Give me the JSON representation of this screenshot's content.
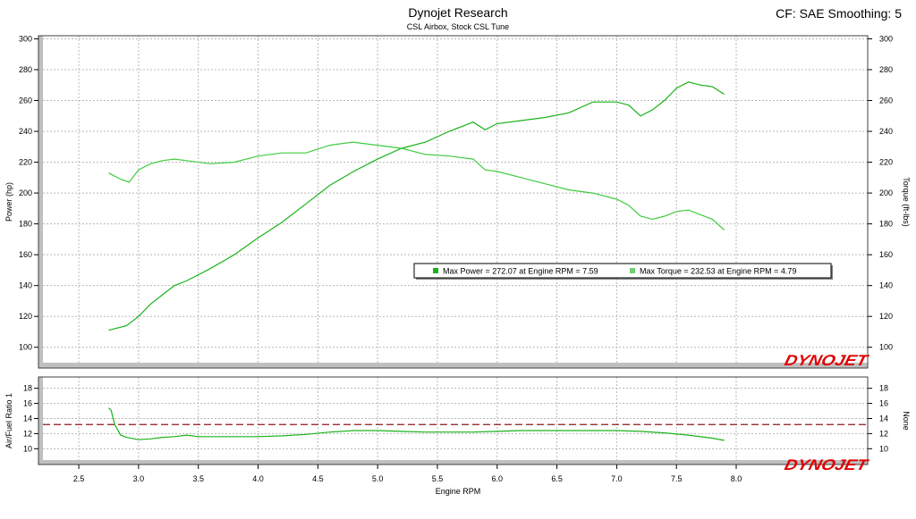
{
  "header": {
    "title": "Dynojet Research",
    "subtitle": "CSL Airbox, Stock CSL Tune",
    "settings": "CF: SAE Smoothing: 5"
  },
  "brand": {
    "logo": "DYNOJET"
  },
  "colors": {
    "power": "#1ab31a",
    "torque": "#3fcc3f",
    "afr": "#1ab31a",
    "reference_line": "#8b1a1a",
    "grid": "#b8b8b8",
    "frame": "#404040",
    "logo_red": "#e00000",
    "logo_black": "#000000"
  },
  "chart_data": [
    {
      "type": "line",
      "name": "dyno-main",
      "title": "Dynojet Research",
      "subtitle": "CSL Airbox, Stock CSL Tune",
      "xlabel": "Engine RPM",
      "ylabel": "Power (hp)",
      "y2label": "Torque (ft-lbs)",
      "xlim": [
        2.2,
        9.1
      ],
      "ylim": [
        90,
        302
      ],
      "y2lim": [
        90,
        302
      ],
      "x_ticks": [
        "2.5",
        "3.0",
        "3.5",
        "4.0",
        "4.5",
        "5.0",
        "5.5",
        "6.0",
        "6.5",
        "7.0",
        "7.5",
        "8.0"
      ],
      "y_ticks": [
        "100",
        "120",
        "140",
        "160",
        "180",
        "200",
        "220",
        "240",
        "260",
        "280",
        "300"
      ],
      "y2_ticks": [
        "100",
        "120",
        "140",
        "160",
        "180",
        "200",
        "220",
        "240",
        "260",
        "280",
        "300"
      ],
      "grid": true,
      "legend_text": [
        "Max Power = 272.07 at Engine RPM = 7.59",
        "Max Torque = 232.53 at Engine RPM = 4.79"
      ],
      "legend_placement": "center-right",
      "series": [
        {
          "axis": "left",
          "x": [
            2.75,
            2.9,
            3.0,
            3.1,
            3.2,
            3.3,
            3.4,
            3.5,
            3.6,
            3.8,
            4.0,
            4.2,
            4.4,
            4.6,
            4.8,
            5.0,
            5.2,
            5.4,
            5.6,
            5.8,
            5.9,
            6.0,
            6.2,
            6.4,
            6.6,
            6.8,
            7.0,
            7.1,
            7.2,
            7.3,
            7.4,
            7.5,
            7.6,
            7.7,
            7.8,
            7.9
          ],
          "y": [
            111,
            114,
            120,
            128,
            134,
            140,
            143,
            147,
            151,
            160,
            171,
            181,
            193,
            205,
            214,
            222,
            229,
            233,
            240,
            246,
            241,
            245,
            247,
            249,
            252,
            259,
            259,
            257,
            250,
            254,
            260,
            268,
            272,
            270,
            269,
            264
          ]
        },
        {
          "axis": "right",
          "x": [
            2.75,
            2.85,
            2.92,
            3.0,
            3.1,
            3.2,
            3.3,
            3.4,
            3.6,
            3.8,
            4.0,
            4.2,
            4.4,
            4.6,
            4.79,
            5.0,
            5.2,
            5.4,
            5.6,
            5.8,
            5.9,
            6.0,
            6.2,
            6.4,
            6.6,
            6.8,
            7.0,
            7.1,
            7.2,
            7.3,
            7.4,
            7.5,
            7.6,
            7.7,
            7.8,
            7.9
          ],
          "y": [
            213,
            209,
            207,
            215,
            219,
            221,
            222,
            221,
            219,
            220,
            224,
            226,
            226,
            231,
            233,
            231,
            229,
            225,
            224,
            222,
            215,
            214,
            210,
            206,
            202,
            200,
            196,
            192,
            185,
            183,
            185,
            188,
            189,
            186,
            183,
            176
          ]
        }
      ]
    },
    {
      "type": "line",
      "name": "afr",
      "xlabel": "Engine RPM",
      "ylabel": "Air/Fuel Ratio 1",
      "y2label": "None",
      "xlim": [
        2.2,
        9.1
      ],
      "ylim": [
        8.5,
        19.5
      ],
      "y_ticks": [
        "10",
        "12",
        "14",
        "16",
        "18"
      ],
      "y2_ticks": [
        "10",
        "12",
        "14",
        "16",
        "18"
      ],
      "reference_line": 13.2,
      "grid": true,
      "series": [
        {
          "x": [
            2.75,
            2.77,
            2.8,
            2.85,
            2.9,
            3.0,
            3.1,
            3.2,
            3.3,
            3.4,
            3.5,
            3.6,
            3.8,
            4.0,
            4.2,
            4.4,
            4.6,
            4.8,
            5.0,
            5.2,
            5.4,
            5.6,
            5.8,
            6.0,
            6.2,
            6.4,
            6.6,
            6.8,
            7.0,
            7.2,
            7.4,
            7.6,
            7.8,
            7.9
          ],
          "y": [
            15.4,
            15.1,
            13.2,
            11.8,
            11.5,
            11.2,
            11.3,
            11.5,
            11.6,
            11.8,
            11.6,
            11.6,
            11.6,
            11.6,
            11.7,
            11.9,
            12.2,
            12.4,
            12.4,
            12.3,
            12.2,
            12.2,
            12.2,
            12.3,
            12.4,
            12.4,
            12.4,
            12.4,
            12.4,
            12.3,
            12.1,
            11.8,
            11.4,
            11.1
          ]
        }
      ]
    }
  ]
}
